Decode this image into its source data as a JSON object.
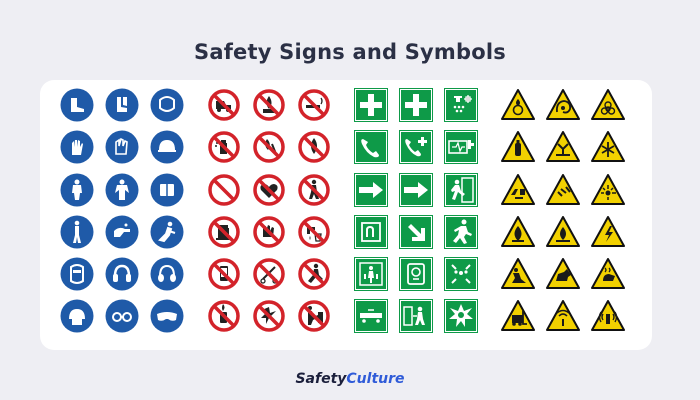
{
  "title": "Safety Signs and Symbols",
  "brand": {
    "part1": "Safety",
    "part2": "Culture"
  },
  "colors": {
    "background": "#eeeef3",
    "mandatory_blue": "#1f5aa8",
    "prohibition_red": "#d3232a",
    "emergency_green": "#0e9a48",
    "warning_yellow": "#f2d100",
    "brand_blue": "#2f5bd8"
  },
  "groups": [
    {
      "category": "mandatory",
      "signs": [
        "safety-boots-icon",
        "rubber-boots-icon",
        "face-shield-icon",
        "protective-gloves-icon",
        "gloves-icon",
        "hard-hat-icon",
        "protective-suit-icon",
        "overalls-icon",
        "read-manual-icon",
        "safety-harness-icon",
        "wash-hands-icon",
        "use-walkway-icon",
        "face-mask-icon",
        "ear-protection-icon",
        "ear-muffs-icon",
        "head-protection-icon",
        "eye-protection-icon",
        "safety-goggles-icon"
      ]
    },
    {
      "category": "prohibition",
      "signs": [
        "no-forklift-icon",
        "no-open-flame-icon",
        "no-smoking-icon",
        "no-spray-icon",
        "no-fire-icon",
        "no-open-fire-icon",
        "no-access-icon",
        "no-pacemakers-icon",
        "no-pedestrians-icon",
        "no-sitting-icon",
        "no-touching-icon",
        "not-drinking-water-icon",
        "no-mobile-phones-icon",
        "no-cutting-icon",
        "no-running-icon",
        "no-lighters-icon",
        "no-sparks-icon",
        "no-pushing-icon"
      ]
    },
    {
      "category": "emergency",
      "signs": [
        "first-aid-icon",
        "first-aid-cross-icon",
        "eye-wash-icon",
        "emergency-phone-icon",
        "emergency-call-icon",
        "defibrillator-icon",
        "arrow-right-icon",
        "arrow-right-alt-icon",
        "emergency-exit-icon",
        "call-point-icon",
        "arrow-down-right-icon",
        "exit-run-icon",
        "assembly-person-icon",
        "break-glass-icon",
        "assembly-point-icon",
        "stretcher-icon",
        "exit-door-icon",
        "shelter-icon"
      ]
    },
    {
      "category": "warning",
      "signs": [
        "oxidizing-icon",
        "rotating-hazard-icon",
        "biohazard-icon",
        "gas-cylinder-icon",
        "crush-hazard-icon",
        "cold-icon",
        "corrosive-icon",
        "flying-debris-icon",
        "laser-icon",
        "flammable-icon",
        "flammable-liquid-icon",
        "electric-hazard-icon",
        "slippery-surface-icon",
        "guard-dog-icon",
        "hot-surface-icon",
        "forklift-warning-icon",
        "non-ionizing-radiation-icon",
        "radio-wave-icon"
      ]
    }
  ]
}
